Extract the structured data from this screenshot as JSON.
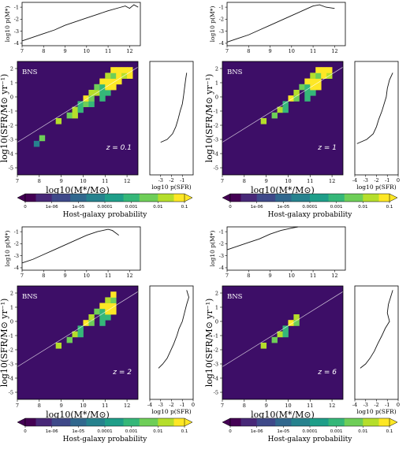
{
  "colors": {
    "colormap": [
      "#440154",
      "#482878",
      "#3e4989",
      "#31688e",
      "#26828e",
      "#1f9e89",
      "#35b779",
      "#6ece58",
      "#b5de2b",
      "#fde725"
    ],
    "background_cell": "#3d0e67",
    "line": "#111111"
  },
  "chart_data": [
    {
      "type": "heatmap",
      "panel": "z=0.1",
      "redshift_label": "z = 0.1",
      "population_label": "BNS",
      "xlabel": "log10(M*/M⊙)",
      "ylabel": "log10(SFR/M⊙ yr⁻¹)",
      "xlim": [
        7,
        12.5
      ],
      "ylim": [
        -5.5,
        2.5
      ],
      "x_ticks": [
        "7",
        "8",
        "9",
        "10",
        "11",
        "12"
      ],
      "y_ticks": [
        "2",
        "1",
        "0",
        "-1",
        "-2",
        "-3",
        "-4",
        "-5"
      ],
      "diagonal_line": {
        "x": [
          7,
          12.5
        ],
        "y": [
          -3.2,
          2.1
        ]
      },
      "grid": {
        "x_edges_start": 7,
        "x_bin": 0.25,
        "y_edges_start": -5.5,
        "y_bin": 0.4,
        "filled_region": {
          "low_intercept": -3.5,
          "low_slope": 1.0,
          "high_offset": 1.4,
          "high_slope": 1.05,
          "x_max": 12.25,
          "y_top": 2.1
        }
      },
      "top_marginal": {
        "label": "log10 p(M*)",
        "ylim": [
          -4.2,
          -0.6
        ],
        "y_ticks": [
          "-1",
          "-2",
          "-3",
          "-4"
        ],
        "x_ticks": [
          "7",
          "8",
          "9",
          "10",
          "11",
          "12"
        ],
        "x": [
          7.0,
          7.5,
          8.0,
          8.5,
          9.0,
          9.5,
          10.0,
          10.5,
          11.0,
          11.5,
          11.8,
          12.0,
          12.2,
          12.4
        ],
        "y": [
          -3.8,
          -3.5,
          -3.2,
          -2.9,
          -2.5,
          -2.2,
          -1.9,
          -1.6,
          -1.3,
          -1.05,
          -0.9,
          -1.1,
          -0.8,
          -1.0
        ]
      },
      "side_marginal": {
        "label": "log10 p(SFR)",
        "xlim": [
          -4,
          0
        ],
        "x_ticks": [
          "-3",
          "-2",
          "-1"
        ],
        "sfr": [
          1.7,
          1.2,
          0.6,
          0.0,
          -0.5,
          -1.0,
          -1.6,
          -2.1,
          -2.6,
          -3.0,
          -3.2
        ],
        "logp": [
          -0.6,
          -0.7,
          -0.8,
          -0.9,
          -1.0,
          -1.2,
          -1.4,
          -1.6,
          -1.9,
          -2.4,
          -3.0
        ]
      },
      "colorbar": {
        "label": "Host-galaxy probability",
        "ticks": [
          "0",
          "1e-06",
          "1e-05",
          "0.0001",
          "0.001",
          "0.01",
          "0.1"
        ]
      }
    },
    {
      "type": "heatmap",
      "panel": "z=1",
      "redshift_label": "z = 1",
      "population_label": "BNS",
      "xlabel": "log10(M*/M⊙)",
      "ylabel": "log10(SFR/M⊙ yr⁻¹)",
      "xlim": [
        7,
        12.5
      ],
      "ylim": [
        -5.5,
        2.5
      ],
      "x_ticks": [
        "7",
        "8",
        "9",
        "10",
        "11",
        "12"
      ],
      "y_ticks": [
        "2",
        "1",
        "0",
        "-1",
        "-2",
        "-3",
        "-4",
        "-5"
      ],
      "diagonal_line": {
        "x": [
          7,
          12.5
        ],
        "y": [
          -3.2,
          2.1
        ]
      },
      "grid": {
        "x_edges_start": 7,
        "x_bin": 0.25,
        "y_edges_start": -5.5,
        "y_bin": 0.4,
        "filled_region": {
          "low_intercept": -3.3,
          "low_slope": 1.0,
          "high_offset": 1.5,
          "high_slope": 1.05,
          "x_max": 12.0,
          "y_top": 2.0
        }
      },
      "top_marginal": {
        "label": "log10 p(M*)",
        "ylim": [
          -4.2,
          -0.6
        ],
        "y_ticks": [
          "-1",
          "-2",
          "-3",
          "-4"
        ],
        "x_ticks": [
          "7",
          "8",
          "9",
          "10",
          "11",
          "12"
        ],
        "x": [
          7.0,
          7.5,
          8.0,
          8.5,
          9.0,
          9.5,
          10.0,
          10.5,
          11.0,
          11.3,
          11.6,
          12.0
        ],
        "y": [
          -3.9,
          -3.6,
          -3.3,
          -2.9,
          -2.5,
          -2.1,
          -1.7,
          -1.3,
          -0.9,
          -0.8,
          -1.0,
          -1.1
        ]
      },
      "side_marginal": {
        "label": "log10 p(SFR)",
        "xlim": [
          -4,
          0
        ],
        "x_ticks": [
          "-4",
          "-3",
          "-2",
          "-1",
          "0"
        ],
        "sfr": [
          1.7,
          1.2,
          0.6,
          0.0,
          -0.5,
          -1.0,
          -1.6,
          -2.1,
          -2.6,
          -3.0,
          -3.3
        ],
        "logp": [
          -0.5,
          -0.8,
          -1.0,
          -1.1,
          -1.3,
          -1.5,
          -1.8,
          -2.0,
          -2.3,
          -2.9,
          -3.8
        ]
      },
      "colorbar": {
        "label": "Host-galaxy probability",
        "ticks": [
          "0",
          "1e-06",
          "1e-05",
          "0.0001",
          "0.001",
          "0.01",
          "0.1"
        ]
      }
    },
    {
      "type": "heatmap",
      "panel": "z=2",
      "redshift_label": "z = 2",
      "population_label": "BNS",
      "xlabel": "log10(M*/M⊙)",
      "ylabel": "log10(SFR/M⊙ yr⁻¹)",
      "xlim": [
        7,
        12.5
      ],
      "ylim": [
        -5.5,
        2.5
      ],
      "x_ticks": [
        "7",
        "8",
        "9",
        "10",
        "11",
        "12"
      ],
      "y_ticks": [
        "2",
        "1",
        "0",
        "-1",
        "-2",
        "-3",
        "-4",
        "-5"
      ],
      "diagonal_line": {
        "x": [
          7,
          12.5
        ],
        "y": [
          -3.2,
          2.1
        ]
      },
      "grid": {
        "x_edges_start": 7,
        "x_bin": 0.25,
        "y_edges_start": -5.5,
        "y_bin": 0.4,
        "filled_region": {
          "low_intercept": -3.3,
          "low_slope": 1.0,
          "high_offset": 1.6,
          "high_slope": 1.05,
          "x_max": 11.5,
          "y_top": 2.2
        }
      },
      "top_marginal": {
        "label": "log10 p(M*)",
        "ylim": [
          -4.2,
          -0.6
        ],
        "y_ticks": [
          "-1",
          "-2",
          "-3",
          "-4"
        ],
        "x_ticks": [
          "7",
          "8",
          "9",
          "10",
          "11",
          "12"
        ],
        "x": [
          7.0,
          7.5,
          8.0,
          8.5,
          9.0,
          9.5,
          10.0,
          10.5,
          11.0,
          11.2,
          11.5
        ],
        "y": [
          -3.6,
          -3.3,
          -2.9,
          -2.5,
          -2.1,
          -1.7,
          -1.3,
          -1.0,
          -0.8,
          -0.9,
          -1.3
        ]
      },
      "side_marginal": {
        "label": "log10 p(SFR)",
        "xlim": [
          -4,
          0
        ],
        "x_ticks": [
          "-4",
          "-3",
          "-2",
          "-1",
          "0"
        ],
        "sfr": [
          2.2,
          1.7,
          1.2,
          0.6,
          0.0,
          -0.5,
          -1.0,
          -1.6,
          -2.1,
          -2.6,
          -3.0,
          -3.3
        ],
        "logp": [
          -0.6,
          -0.4,
          -0.6,
          -0.8,
          -1.0,
          -1.3,
          -1.5,
          -1.8,
          -2.1,
          -2.4,
          -2.8,
          -3.2
        ]
      },
      "colorbar": {
        "label": "Host-galaxy probability",
        "ticks": [
          "0",
          "1e-06",
          "1e-05",
          "0.0001",
          "0.001",
          "0.01",
          "0.1"
        ]
      }
    },
    {
      "type": "heatmap",
      "panel": "z=6",
      "redshift_label": "z = 6",
      "population_label": "BNS",
      "xlabel": "log10(M*/M⊙)",
      "ylabel": "log10(SFR/M⊙ yr⁻¹)",
      "xlim": [
        7,
        12.5
      ],
      "ylim": [
        -5.5,
        2.5
      ],
      "x_ticks": [
        "7",
        "8",
        "9",
        "10",
        "11",
        "12"
      ],
      "y_ticks": [
        "2",
        "1",
        "0",
        "-1",
        "-2",
        "-3",
        "-4",
        "-5"
      ],
      "diagonal_line": {
        "x": [
          7,
          12.5
        ],
        "y": [
          -3.2,
          2.1
        ]
      },
      "grid": {
        "x_edges_start": 7,
        "x_bin": 0.25,
        "y_edges_start": -5.5,
        "y_bin": 0.4,
        "filled_region": {
          "low_intercept": -3.3,
          "low_slope": 1.05,
          "high_offset": 1.8,
          "high_slope": 1.1,
          "x_max": 10.4,
          "y_top": 2.2
        }
      },
      "top_marginal": {
        "label": "log10 p(M*)",
        "ylim": [
          -4.2,
          -0.6
        ],
        "y_ticks": [
          "-1",
          "-2",
          "-3",
          "-4"
        ],
        "x_ticks": [
          "7",
          "8",
          "9",
          "10",
          "11",
          "12"
        ],
        "x": [
          7.0,
          7.5,
          8.0,
          8.5,
          9.0,
          9.5,
          10.0,
          10.3
        ],
        "y": [
          -2.5,
          -2.2,
          -1.9,
          -1.6,
          -1.2,
          -0.9,
          -0.7,
          -0.6
        ]
      },
      "side_marginal": {
        "label": "log10 p(SFR)",
        "xlim": [
          -4,
          0
        ],
        "x_ticks": [
          "-4",
          "-3",
          "-2",
          "-1",
          "0"
        ],
        "sfr": [
          2.2,
          1.7,
          1.2,
          0.6,
          0.0,
          -0.5,
          -1.0,
          -1.6,
          -2.1,
          -2.6,
          -3.0,
          -3.3
        ],
        "logp": [
          -0.5,
          -0.7,
          -0.9,
          -1.0,
          -0.8,
          -1.2,
          -1.5,
          -1.9,
          -2.2,
          -2.6,
          -3.0,
          -3.5
        ]
      },
      "colorbar": {
        "label": "Host-galaxy probability",
        "ticks": [
          "0",
          "1e-06",
          "1e-05",
          "0.0001",
          "0.001",
          "0.01",
          "0.1"
        ]
      }
    }
  ]
}
